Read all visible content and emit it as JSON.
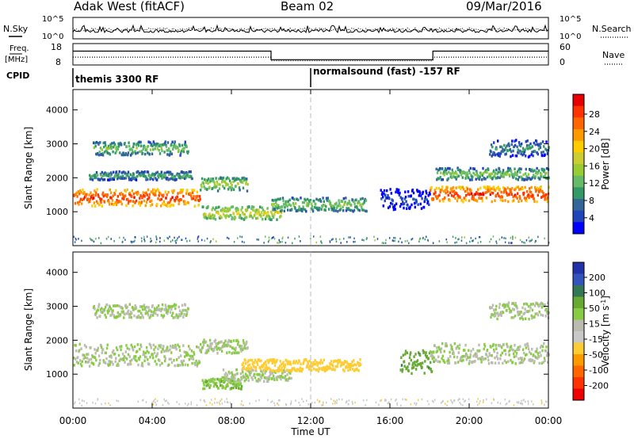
{
  "header": {
    "station": "Adak West (fitACF)",
    "beam": "Beam 02",
    "date": "09/Mar/2016"
  },
  "panels": {
    "nsky": {
      "left_label": "N.Sky",
      "right_label": "N.Search",
      "left_ticks": [
        "10^5",
        "10^0"
      ],
      "right_ticks": [
        "10^5",
        "10^0"
      ]
    },
    "freq": {
      "left_label_top": "Freq.",
      "left_label_bottom": "[MHz]",
      "right_label": "Nave",
      "left_ticks": [
        "18",
        "8"
      ],
      "right_ticks": [
        "60",
        "0"
      ],
      "freq_steps": [
        {
          "start": "00:00",
          "value": 14.5
        },
        {
          "start": "10:00",
          "value": 10.5
        },
        {
          "start": "18:10",
          "value": 14.5
        }
      ],
      "nave_steps": [
        {
          "start": "00:00",
          "value": 22
        },
        {
          "start": "10:00",
          "value": 12
        },
        {
          "start": "18:10",
          "value": 22
        }
      ]
    },
    "cpid": {
      "label": "CPID",
      "program_1": "themis 3300 RF",
      "program_2": "normalsound (fast) -157 RF",
      "switch_time": "12:00"
    }
  },
  "colorbars": {
    "power": {
      "label": "Power [dB]",
      "ticks": [
        "28",
        "24",
        "20",
        "16",
        "12",
        "8",
        "4"
      ],
      "colors": [
        "#e60000",
        "#ff3300",
        "#ff6600",
        "#ff9900",
        "#ffcc00",
        "#cccc33",
        "#99cc33",
        "#66bb66",
        "#339966",
        "#336699",
        "#2244bb",
        "#0000ff"
      ]
    },
    "velocity": {
      "label_main": "Velocity [m s",
      "label_sup": "-1",
      "label_end": "]",
      "ticks": [
        "200",
        "100",
        "50",
        "15",
        "-15",
        "-50",
        "-100",
        "-200"
      ],
      "colors": [
        "#2233aa",
        "#3355bb",
        "#337755",
        "#66aa33",
        "#88cc44",
        "#bbbbb0",
        "#c8c8c8",
        "#ffcc33",
        "#ff9900",
        "#ff6600",
        "#ff3300",
        "#ee0000"
      ]
    }
  },
  "chart_data": [
    {
      "type": "heatmap",
      "name": "power",
      "ylabel": "Slant Range [km]",
      "ylim": [
        0,
        4600
      ],
      "yticks": [
        "1000",
        "2000",
        "3000",
        "4000"
      ],
      "xlim": [
        "00:00",
        "24:00"
      ],
      "features": [
        {
          "start_h": 0.0,
          "end_h": 6.4,
          "range_km": 1450,
          "thick_km": 500,
          "power_db": 28
        },
        {
          "start_h": 6.4,
          "end_h": 8.8,
          "range_km": 1850,
          "thick_km": 400,
          "power_db": 16
        },
        {
          "start_h": 0.8,
          "end_h": 6.0,
          "range_km": 2100,
          "thick_km": 250,
          "power_db": 12
        },
        {
          "start_h": 1.0,
          "end_h": 5.8,
          "range_km": 2900,
          "thick_km": 400,
          "power_db": 14
        },
        {
          "start_h": 6.5,
          "end_h": 10.5,
          "range_km": 1000,
          "thick_km": 400,
          "power_db": 18
        },
        {
          "start_h": 10.0,
          "end_h": 14.8,
          "range_km": 1250,
          "thick_km": 400,
          "power_db": 14
        },
        {
          "start_h": 18.0,
          "end_h": 24.0,
          "range_km": 1550,
          "thick_km": 450,
          "power_db": 28
        },
        {
          "start_h": 18.3,
          "end_h": 24.0,
          "range_km": 2150,
          "thick_km": 350,
          "power_db": 14
        },
        {
          "start_h": 21.0,
          "end_h": 24.0,
          "range_km": 2900,
          "thick_km": 500,
          "power_db": 10
        },
        {
          "start_h": 15.5,
          "end_h": 18.0,
          "range_km": 1400,
          "thick_km": 600,
          "power_db": 6
        }
      ]
    },
    {
      "type": "heatmap",
      "name": "velocity",
      "ylabel": "Slant Range [km]",
      "xlabel": "Time UT",
      "ylim": [
        0,
        4600
      ],
      "yticks": [
        "1000",
        "2000",
        "3000",
        "4000"
      ],
      "xlim": [
        "00:00",
        "24:00"
      ],
      "xticks": [
        "00:00",
        "04:00",
        "08:00",
        "12:00",
        "16:00",
        "20:00",
        "00:00"
      ],
      "features": [
        {
          "start_h": 0.0,
          "end_h": 6.4,
          "range_km": 1600,
          "thick_km": 650,
          "velocity_ms": 0
        },
        {
          "start_h": 6.4,
          "end_h": 8.8,
          "range_km": 1850,
          "thick_km": 400,
          "velocity_ms": 0
        },
        {
          "start_h": 1.0,
          "end_h": 5.8,
          "range_km": 2900,
          "thick_km": 400,
          "velocity_ms": 0
        },
        {
          "start_h": 6.5,
          "end_h": 8.5,
          "range_km": 750,
          "thick_km": 300,
          "velocity_ms": 15
        },
        {
          "start_h": 7.5,
          "end_h": 11.0,
          "range_km": 1000,
          "thick_km": 350,
          "velocity_ms": 0
        },
        {
          "start_h": 8.5,
          "end_h": 14.5,
          "range_km": 1300,
          "thick_km": 350,
          "velocity_ms": -80
        },
        {
          "start_h": 16.5,
          "end_h": 18.2,
          "range_km": 1400,
          "thick_km": 700,
          "velocity_ms": 40
        },
        {
          "start_h": 18.0,
          "end_h": 24.0,
          "range_km": 1650,
          "thick_km": 600,
          "velocity_ms": 0
        },
        {
          "start_h": 21.0,
          "end_h": 24.0,
          "range_km": 2900,
          "thick_km": 500,
          "velocity_ms": 0
        }
      ]
    }
  ]
}
